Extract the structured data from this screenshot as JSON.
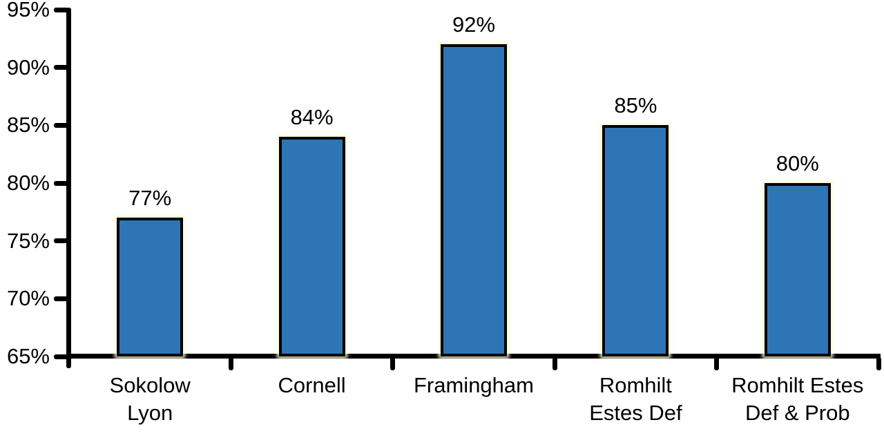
{
  "figure": {
    "background_color": "#ffffff",
    "axis_color": "#000000",
    "text_color": "#000000"
  },
  "chart_data": {
    "type": "bar",
    "title": "",
    "xlabel": "",
    "ylabel": "",
    "ylim": [
      65,
      95
    ],
    "yticks": [
      65,
      70,
      75,
      80,
      85,
      90,
      95
    ],
    "ytick_labels": [
      "65%",
      "70%",
      "75%",
      "80%",
      "85%",
      "90%",
      "95%"
    ],
    "grid": false,
    "legend_position": "none",
    "bar_color": "#2E75B6",
    "bar_border_color": "#000000",
    "bar_glow_color": "#FAFAD8",
    "categories": [
      {
        "id": "sokolow-lyon",
        "lines": [
          "Sokolow",
          "Lyon"
        ],
        "value": 77,
        "value_label": "77%"
      },
      {
        "id": "cornell",
        "lines": [
          "Cornell"
        ],
        "value": 84,
        "value_label": "84%"
      },
      {
        "id": "framingham",
        "lines": [
          "Framingham"
        ],
        "value": 92,
        "value_label": "92%"
      },
      {
        "id": "romhilt-estes-def",
        "lines": [
          "Romhilt",
          "Estes Def"
        ],
        "value": 85,
        "value_label": "85%"
      },
      {
        "id": "romhilt-estes-def-prob",
        "lines": [
          "Romhilt Estes",
          "Def & Prob"
        ],
        "value": 80,
        "value_label": "80%"
      }
    ]
  }
}
